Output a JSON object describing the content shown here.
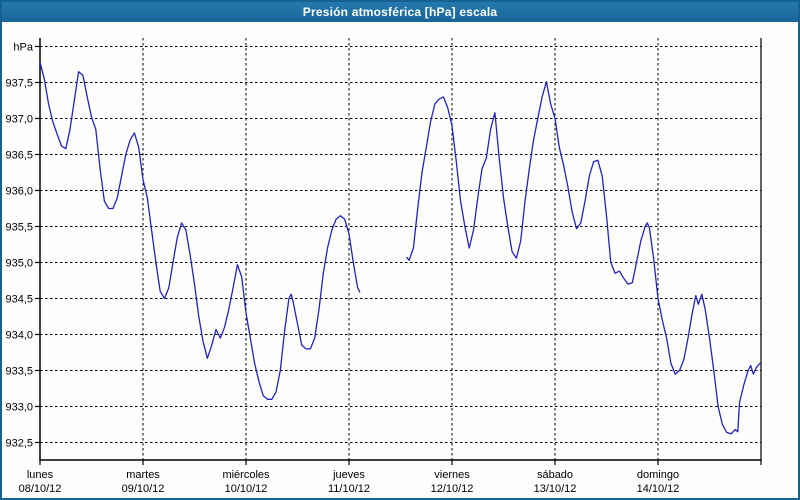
{
  "window": {
    "title": "Presión atmosférica [hPa] escala"
  },
  "chart_data": {
    "type": "line",
    "title": "Presión atmosférica [hPa] escala",
    "unit": "hPa",
    "grid": true,
    "line_color": "#2323bb",
    "grid_color": "#000000",
    "axis_color": "#000000",
    "titlebar_color": "#1c6ea4",
    "ylim": [
      932.5,
      938.0
    ],
    "x_range_hours": 168,
    "y_axis": {
      "ticks": [
        {
          "value": 938.0,
          "label": "hPa"
        },
        {
          "value": 937.5,
          "label": "937,5"
        },
        {
          "value": 937.0,
          "label": "937,0"
        },
        {
          "value": 936.5,
          "label": "936,5"
        },
        {
          "value": 936.0,
          "label": "936,0"
        },
        {
          "value": 935.5,
          "label": "935,5"
        },
        {
          "value": 935.0,
          "label": "935,0"
        },
        {
          "value": 934.5,
          "label": "934,5"
        },
        {
          "value": 934.0,
          "label": "934,0"
        },
        {
          "value": 933.5,
          "label": "933,5"
        },
        {
          "value": 933.0,
          "label": "933,0"
        },
        {
          "value": 932.5,
          "label": "932,5"
        }
      ]
    },
    "x_axis": {
      "days": [
        {
          "name": "lunes",
          "date": "08/10/12"
        },
        {
          "name": "martes",
          "date": "09/10/12"
        },
        {
          "name": "miércoles",
          "date": "10/10/12"
        },
        {
          "name": "jueves",
          "date": "11/10/12"
        },
        {
          "name": "viernes",
          "date": "12/10/12"
        },
        {
          "name": "sábado",
          "date": "13/10/12"
        },
        {
          "name": "domingo",
          "date": "14/10/12"
        }
      ]
    },
    "series": [
      {
        "name": "Presión atmosférica",
        "units": "hPa",
        "segments": [
          [
            [
              0,
              937.78
            ],
            [
              1,
              937.55
            ],
            [
              2,
              937.2
            ],
            [
              3,
              936.95
            ],
            [
              4,
              936.78
            ],
            [
              5,
              936.62
            ],
            [
              6,
              936.58
            ],
            [
              7,
              936.85
            ],
            [
              8,
              937.25
            ],
            [
              9,
              937.65
            ],
            [
              10,
              937.6
            ],
            [
              11,
              937.3
            ],
            [
              12,
              937.02
            ],
            [
              13,
              936.85
            ],
            [
              14,
              936.3
            ],
            [
              15,
              935.85
            ],
            [
              16,
              935.75
            ],
            [
              17,
              935.75
            ],
            [
              18,
              935.9
            ],
            [
              19,
              936.2
            ],
            [
              20,
              936.5
            ],
            [
              21,
              936.7
            ],
            [
              22,
              936.8
            ],
            [
              23,
              936.6
            ],
            [
              24,
              936.15
            ],
            [
              25,
              935.9
            ],
            [
              26,
              935.45
            ],
            [
              27,
              935.0
            ],
            [
              28,
              934.6
            ],
            [
              29,
              934.5
            ],
            [
              30,
              934.65
            ],
            [
              31,
              935.0
            ],
            [
              32,
              935.35
            ],
            [
              33,
              935.55
            ],
            [
              34,
              935.45
            ],
            [
              35,
              935.1
            ],
            [
              36,
              934.7
            ],
            [
              37,
              934.25
            ],
            [
              38,
              933.9
            ],
            [
              39,
              933.67
            ],
            [
              40,
              933.85
            ],
            [
              41,
              934.07
            ],
            [
              42,
              933.95
            ],
            [
              43,
              934.1
            ],
            [
              44,
              934.35
            ],
            [
              45,
              934.65
            ],
            [
              46,
              934.97
            ],
            [
              47,
              934.8
            ],
            [
              48,
              934.3
            ],
            [
              49,
              933.95
            ],
            [
              50,
              933.6
            ],
            [
              51,
              933.35
            ],
            [
              52,
              933.15
            ],
            [
              53,
              933.1
            ],
            [
              54,
              933.1
            ],
            [
              55,
              933.2
            ],
            [
              56,
              933.5
            ],
            [
              57,
              934.05
            ],
            [
              58,
              934.5
            ],
            [
              58.5,
              934.56
            ],
            [
              59,
              934.45
            ],
            [
              60,
              934.15
            ],
            [
              61,
              933.85
            ],
            [
              62,
              933.8
            ],
            [
              63,
              933.8
            ],
            [
              64,
              933.95
            ],
            [
              65,
              934.35
            ],
            [
              66,
              934.85
            ],
            [
              67,
              935.2
            ],
            [
              68,
              935.45
            ],
            [
              69,
              935.6
            ],
            [
              70,
              935.65
            ],
            [
              71,
              935.6
            ],
            [
              72,
              935.4
            ],
            [
              73,
              935.0
            ],
            [
              74,
              934.65
            ],
            [
              74.5,
              934.59
            ]
          ],
          [
            [
              85.5,
              935.07
            ],
            [
              86,
              935.03
            ],
            [
              87,
              935.2
            ],
            [
              88,
              935.75
            ],
            [
              89,
              936.25
            ],
            [
              90,
              936.6
            ],
            [
              91,
              936.95
            ],
            [
              92,
              937.2
            ],
            [
              93,
              937.27
            ],
            [
              94,
              937.3
            ],
            [
              95,
              937.15
            ],
            [
              96,
              936.9
            ],
            [
              97,
              936.4
            ],
            [
              98,
              935.85
            ],
            [
              99,
              935.5
            ],
            [
              100,
              935.2
            ],
            [
              101,
              935.45
            ],
            [
              102,
              935.9
            ],
            [
              103,
              936.3
            ],
            [
              104,
              936.45
            ],
            [
              105,
              936.85
            ],
            [
              106,
              937.08
            ],
            [
              107,
              936.45
            ],
            [
              108,
              935.9
            ],
            [
              109,
              935.5
            ],
            [
              110,
              935.15
            ],
            [
              111,
              935.06
            ],
            [
              112,
              935.3
            ],
            [
              113,
              935.85
            ],
            [
              114,
              936.3
            ],
            [
              115,
              936.7
            ],
            [
              116,
              937.0
            ],
            [
              117,
              937.3
            ],
            [
              118,
              937.51
            ],
            [
              119,
              937.2
            ],
            [
              120,
              937.0
            ],
            [
              121,
              936.6
            ],
            [
              122,
              936.35
            ],
            [
              123,
              936.05
            ],
            [
              124,
              935.7
            ],
            [
              125,
              935.47
            ],
            [
              126,
              935.55
            ],
            [
              127,
              935.85
            ],
            [
              128,
              936.2
            ],
            [
              129,
              936.4
            ],
            [
              130,
              936.42
            ],
            [
              131,
              936.2
            ],
            [
              132,
              935.65
            ],
            [
              133,
              935.0
            ],
            [
              134,
              934.85
            ],
            [
              135,
              934.88
            ],
            [
              136,
              934.78
            ],
            [
              137,
              934.7
            ],
            [
              138,
              934.72
            ],
            [
              139,
              935.0
            ],
            [
              140,
              935.3
            ],
            [
              141,
              935.5
            ],
            [
              141.5,
              935.55
            ],
            [
              142,
              935.48
            ],
            [
              143,
              935.05
            ],
            [
              144,
              934.5
            ],
            [
              145,
              934.2
            ],
            [
              146,
              933.95
            ],
            [
              147,
              933.6
            ],
            [
              148,
              933.45
            ],
            [
              149,
              933.5
            ],
            [
              150,
              933.65
            ],
            [
              151,
              933.95
            ],
            [
              152,
              934.3
            ],
            [
              152.8,
              934.54
            ],
            [
              153.4,
              934.42
            ],
            [
              154.2,
              934.56
            ],
            [
              155,
              934.35
            ],
            [
              156,
              933.95
            ],
            [
              157,
              933.5
            ],
            [
              158,
              933.0
            ],
            [
              159,
              932.75
            ],
            [
              160,
              932.64
            ],
            [
              161,
              932.62
            ],
            [
              162,
              932.68
            ],
            [
              162.6,
              932.65
            ],
            [
              163,
              933.05
            ],
            [
              164,
              933.3
            ],
            [
              165,
              933.5
            ],
            [
              165.6,
              933.57
            ],
            [
              166.2,
              933.45
            ],
            [
              167,
              933.55
            ],
            [
              167.8,
              933.6
            ]
          ]
        ]
      }
    ]
  }
}
